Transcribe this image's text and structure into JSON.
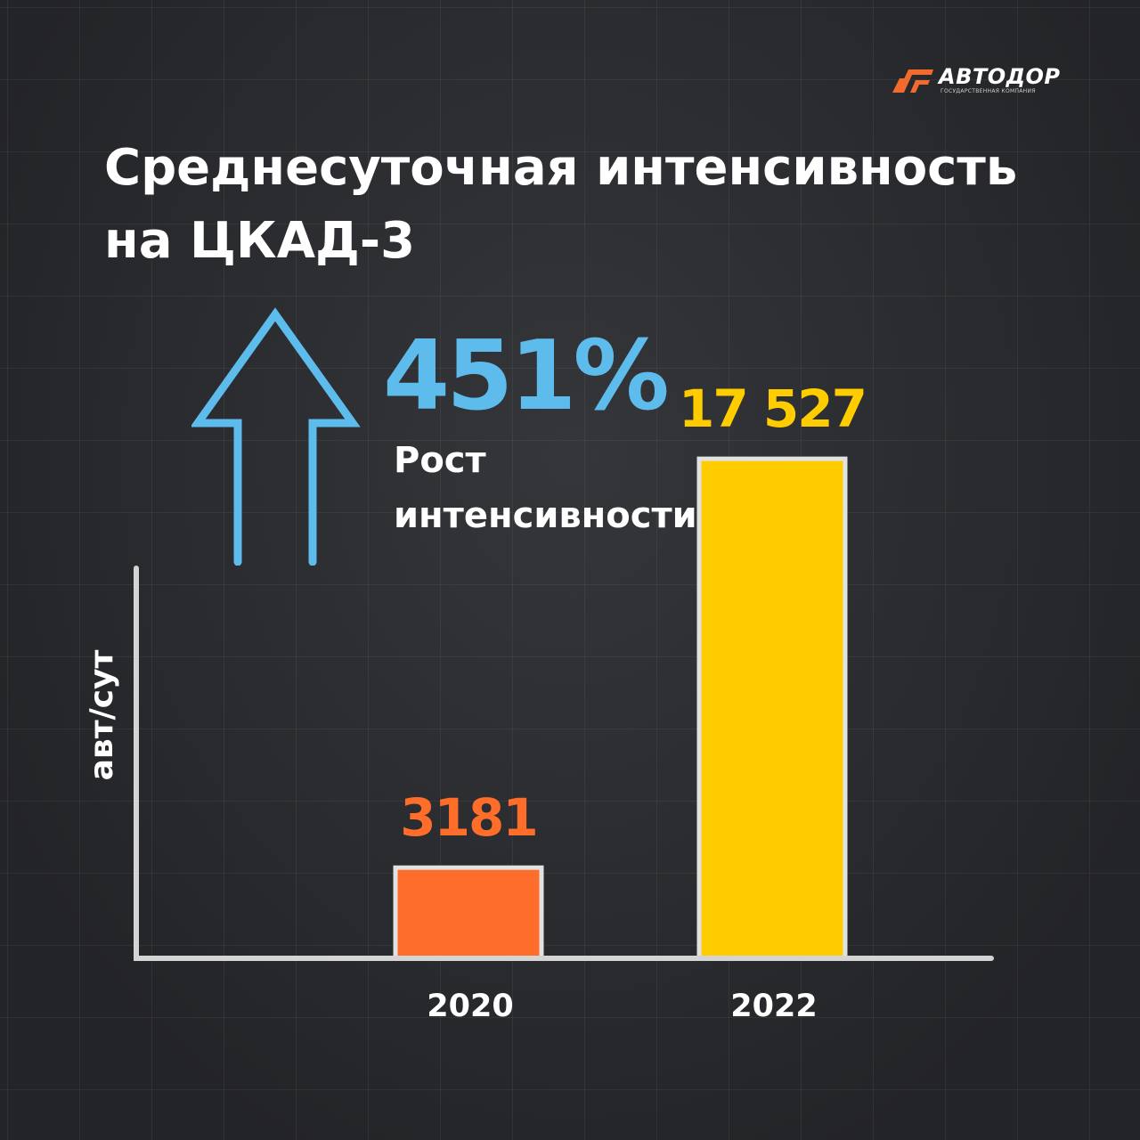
{
  "logo": {
    "name": "АВТОДОР",
    "subtitle": "ГОСУДАРСТВЕННАЯ КОМПАНИЯ",
    "brand_color": "#f26a2e"
  },
  "title": {
    "line1": "Среднесуточная интенсивность",
    "line2": "на ЦКАД-3"
  },
  "growth": {
    "value": "451%",
    "label_line1": "Рост",
    "label_line2": "интенсивности",
    "arrow_icon": "up-arrow-outline",
    "color": "#5ebcec"
  },
  "chart_data": {
    "type": "bar",
    "categories": [
      "2020",
      "2022"
    ],
    "values": [
      3181,
      17527
    ],
    "value_labels": [
      "3181",
      "17 527"
    ],
    "colors": [
      "#ff6d2a",
      "#ffcc00"
    ],
    "label_colors": [
      "#ff6d2a",
      "#ffcc00"
    ],
    "title": "",
    "xlabel": "",
    "ylabel": "авт/сут",
    "ylim": [
      0,
      23000
    ],
    "grid": false,
    "legend": "none"
  }
}
